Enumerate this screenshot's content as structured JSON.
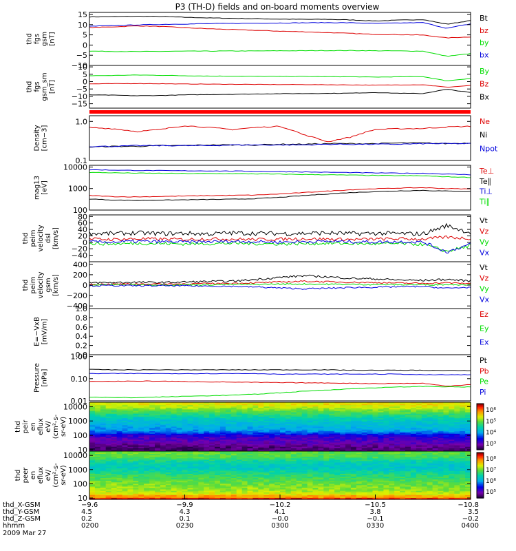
{
  "title": "P3 (TH-D) fields and on-board moments overview",
  "colors": {
    "black": "#000000",
    "red": "#dd0000",
    "green": "#00dd00",
    "blue": "#0000dd",
    "frame": "#000000",
    "flag": "#ff0000"
  },
  "chart_data": [
    {
      "type": "line",
      "panel": "fgs_gsm",
      "ylabel": [
        "thd",
        "fgs",
        "gsm",
        "[nT]"
      ],
      "yticks": [
        "15",
        "10",
        "5",
        "0",
        "−5",
        "−10"
      ],
      "ylim": [
        -10,
        16
      ],
      "series": [
        {
          "name": "Bt",
          "color": "black",
          "values": [
            13.8,
            13.9,
            14.1,
            14.0,
            13.6,
            13.3,
            13.1,
            12.9,
            12.7,
            12.6,
            12.6,
            12.3,
            11.8,
            12.2,
            12.5,
            10.2,
            12.0
          ]
        },
        {
          "name": "bz",
          "color": "red",
          "values": [
            8.6,
            8.9,
            9.4,
            9.1,
            8.5,
            8.0,
            7.6,
            7.2,
            6.8,
            6.5,
            6.1,
            5.7,
            5.2,
            5.1,
            4.9,
            3.5,
            4.0
          ]
        },
        {
          "name": "by",
          "color": "green",
          "values": [
            -3.0,
            -3.1,
            -3.2,
            -3.1,
            -3.0,
            -3.0,
            -2.9,
            -2.9,
            -2.8,
            -2.8,
            -2.7,
            -2.7,
            -2.8,
            -2.9,
            -3.0,
            -5.5,
            -4.2
          ]
        },
        {
          "name": "bx",
          "color": "blue",
          "values": [
            9.2,
            9.5,
            9.9,
            10.1,
            10.3,
            10.5,
            10.6,
            10.7,
            10.8,
            10.9,
            11.0,
            10.9,
            10.6,
            10.8,
            11.0,
            8.2,
            10.4
          ]
        }
      ]
    },
    {
      "type": "line",
      "panel": "fgs_gsm_sm",
      "ylabel": [
        "thd",
        "fgs",
        "gsm_sm",
        "[nT]"
      ],
      "yticks": [
        "10",
        "5",
        "0",
        "−5",
        "−10",
        "−15"
      ],
      "ylim": [
        -18,
        11
      ],
      "series": [
        {
          "name": "By",
          "color": "green",
          "values": [
            4.0,
            4.2,
            4.5,
            4.3,
            4.0,
            3.8,
            3.7,
            3.6,
            3.5,
            3.5,
            3.4,
            3.3,
            3.1,
            3.3,
            3.4,
            0.5,
            2.2
          ]
        },
        {
          "name": "Bz",
          "color": "red",
          "values": [
            -1.5,
            -1.4,
            -1.3,
            -1.4,
            -1.6,
            -1.7,
            -1.8,
            -1.9,
            -2.0,
            -2.0,
            -2.1,
            -2.2,
            -2.4,
            -2.2,
            -2.1,
            -3.8,
            -2.6
          ]
        },
        {
          "name": "Bx",
          "color": "black",
          "values": [
            -9.0,
            -9.2,
            -9.6,
            -9.4,
            -9.0,
            -8.8,
            -8.6,
            -8.4,
            -8.2,
            -8.1,
            -8.0,
            -7.8,
            -7.4,
            -7.9,
            -8.1,
            -5.2,
            -7.4
          ]
        }
      ]
    },
    {
      "type": "line",
      "panel": "density",
      "ylabel": [
        "Density",
        "[cm−3]"
      ],
      "yticks": [
        "1.0",
        "0.1"
      ],
      "yscale": "log",
      "ylim": [
        0.1,
        1.4
      ],
      "series": [
        {
          "name": "Ne",
          "color": "red",
          "values": [
            0.7,
            0.65,
            0.55,
            0.62,
            0.78,
            0.7,
            0.62,
            0.7,
            0.75,
            0.45,
            0.3,
            0.4,
            0.62,
            0.65,
            0.66,
            0.72,
            0.75
          ]
        },
        {
          "name": "Ni",
          "color": "black",
          "values": [
            0.22,
            0.23,
            0.23,
            0.24,
            0.24,
            0.25,
            0.25,
            0.25,
            0.26,
            0.26,
            0.27,
            0.27,
            0.27,
            0.28,
            0.28,
            0.27,
            0.28
          ]
        },
        {
          "name": "Npot",
          "color": "blue",
          "values": [
            0.23,
            0.23,
            0.24,
            0.24,
            0.24,
            0.24,
            0.25,
            0.25,
            0.25,
            0.25,
            0.26,
            0.26,
            0.26,
            0.26,
            0.27,
            0.27,
            0.27
          ]
        }
      ]
    },
    {
      "type": "line",
      "panel": "temperature",
      "ylabel": [
        "mag13",
        "[eV]"
      ],
      "yticks": [
        "10000",
        "1000",
        "100"
      ],
      "yscale": "log",
      "ylim": [
        100,
        12000
      ],
      "series": [
        {
          "name": "Te⊥",
          "color": "red",
          "values": [
            480,
            420,
            410,
            430,
            450,
            470,
            480,
            500,
            560,
            650,
            760,
            880,
            980,
            1050,
            1100,
            1000,
            950
          ]
        },
        {
          "name": "Te∥",
          "color": "black",
          "values": [
            330,
            290,
            280,
            290,
            300,
            310,
            320,
            340,
            390,
            470,
            560,
            650,
            720,
            780,
            820,
            760,
            720
          ]
        },
        {
          "name": "Ti⊥",
          "color": "blue",
          "values": [
            7500,
            7200,
            6900,
            6800,
            6700,
            6600,
            6500,
            6300,
            6100,
            5900,
            5700,
            5500,
            5300,
            5200,
            5100,
            4700,
            4400
          ]
        },
        {
          "name": "Ti∥",
          "color": "green",
          "values": [
            5600,
            5400,
            5200,
            5100,
            5000,
            4950,
            4900,
            4800,
            4650,
            4500,
            4350,
            4200,
            4050,
            3950,
            3900,
            3500,
            3300
          ]
        }
      ]
    },
    {
      "type": "line",
      "panel": "peim_velocity_dsl",
      "ylabel": [
        "thd",
        "peim",
        "velocity",
        "dsl",
        "[km/s]"
      ],
      "yticks": [
        "80",
        "60",
        "40",
        "20",
        "0",
        "−20",
        "−40"
      ],
      "ylim": [
        -60,
        85
      ],
      "series": [
        {
          "name": "Vt",
          "color": "black",
          "values": [
            28,
            27,
            29,
            27,
            28,
            26,
            29,
            28,
            27,
            28,
            29,
            27,
            28,
            27,
            26,
            52,
            30
          ]
        },
        {
          "name": "Vz",
          "color": "red",
          "values": [
            10,
            9,
            11,
            10,
            9,
            11,
            10,
            9,
            10,
            11,
            10,
            9,
            10,
            11,
            10,
            16,
            12
          ]
        },
        {
          "name": "Vy",
          "color": "green",
          "values": [
            -4,
            -5,
            -3,
            -4,
            -5,
            -4,
            -3,
            -4,
            -5,
            -4,
            -3,
            -4,
            -5,
            -4,
            -6,
            -28,
            -10
          ]
        },
        {
          "name": "Vx",
          "color": "blue",
          "values": [
            2,
            1,
            3,
            2,
            1,
            2,
            3,
            2,
            1,
            2,
            3,
            2,
            1,
            2,
            1,
            -30,
            -5
          ]
        }
      ]
    },
    {
      "type": "line",
      "panel": "peim_velocity_gsm",
      "ylabel": [
        "thd",
        "peim",
        "velocity",
        "gsm",
        "[km/s]"
      ],
      "yticks": [
        "400",
        "200",
        "0",
        "−200",
        "−400"
      ],
      "ylim": [
        -450,
        450
      ],
      "series": [
        {
          "name": "Vt",
          "color": "black",
          "values": [
            45,
            50,
            55,
            50,
            60,
            70,
            75,
            110,
            150,
            180,
            160,
            130,
            120,
            100,
            90,
            110,
            80
          ]
        },
        {
          "name": "Vz",
          "color": "red",
          "values": [
            15,
            20,
            25,
            20,
            25,
            30,
            35,
            45,
            60,
            75,
            65,
            55,
            50,
            40,
            35,
            45,
            30
          ]
        },
        {
          "name": "Vy",
          "color": "green",
          "values": [
            5,
            6,
            8,
            6,
            8,
            10,
            12,
            15,
            20,
            22,
            18,
            15,
            12,
            10,
            8,
            12,
            10
          ]
        },
        {
          "name": "Vx",
          "color": "blue",
          "values": [
            -10,
            -8,
            -12,
            -10,
            -14,
            -18,
            -22,
            -35,
            -55,
            -70,
            -60,
            -45,
            -40,
            -30,
            -25,
            -60,
            -40
          ]
        }
      ]
    },
    {
      "type": "line",
      "panel": "efield",
      "ylabel": [
        "E=−VxB",
        "[mV/m]"
      ],
      "yticks": [
        "1.0",
        "0.8",
        "0.6",
        "0.4",
        "0.2",
        "0.0"
      ],
      "ylim": [
        0,
        1
      ],
      "series": [
        {
          "name": "Ez",
          "color": "red",
          "values": []
        },
        {
          "name": "Ey",
          "color": "green",
          "values": []
        },
        {
          "name": "Ex",
          "color": "blue",
          "values": []
        }
      ]
    },
    {
      "type": "line",
      "panel": "pressure",
      "ylabel": [
        "Pressure",
        "[nPa]"
      ],
      "yticks": [
        "1.00",
        "0.10",
        "0.01"
      ],
      "yscale": "log",
      "ylim": [
        0.01,
        1.2
      ],
      "series": [
        {
          "name": "Pt",
          "color": "black",
          "values": [
            0.26,
            0.25,
            0.25,
            0.25,
            0.25,
            0.25,
            0.25,
            0.25,
            0.25,
            0.25,
            0.25,
            0.24,
            0.24,
            0.24,
            0.24,
            0.23,
            0.23
          ]
        },
        {
          "name": "Pb",
          "color": "red",
          "values": [
            0.075,
            0.076,
            0.078,
            0.077,
            0.074,
            0.072,
            0.07,
            0.068,
            0.066,
            0.065,
            0.064,
            0.062,
            0.06,
            0.061,
            0.062,
            0.045,
            0.055
          ]
        },
        {
          "name": "Pe",
          "color": "green",
          "values": [
            0.015,
            0.014,
            0.014,
            0.015,
            0.016,
            0.017,
            0.018,
            0.02,
            0.023,
            0.027,
            0.031,
            0.035,
            0.039,
            0.042,
            0.045,
            0.043,
            0.042
          ]
        },
        {
          "name": "Pi",
          "color": "blue",
          "values": [
            0.17,
            0.17,
            0.17,
            0.17,
            0.17,
            0.17,
            0.17,
            0.17,
            0.16,
            0.16,
            0.16,
            0.16,
            0.16,
            0.16,
            0.15,
            0.15,
            0.15
          ]
        }
      ]
    },
    {
      "type": "heatmap",
      "panel": "peir_en_eflux",
      "ylabel": [
        "thd",
        "peir",
        "en",
        "eflux",
        "eV/",
        "(cm²-s-",
        "sr-eV)"
      ],
      "yticks": [
        "10000",
        "1000",
        "100",
        "10"
      ],
      "yscale": "log",
      "ylim": [
        8,
        20000
      ],
      "colorbar": {
        "ticks": [
          "10⁶",
          "10⁵",
          "10⁴",
          "10³"
        ],
        "range_log10": [
          2.5,
          6.5
        ]
      },
      "energy_bands_log10": [
        {
          "center_log10": 4.15,
          "value_log10": 5.4
        },
        {
          "center_log10": 3.85,
          "value_log10": 5.1
        },
        {
          "center_log10": 3.5,
          "value_log10": 4.7
        },
        {
          "center_log10": 3.1,
          "value_log10": 4.3
        },
        {
          "center_log10": 2.7,
          "value_log10": 4.1
        },
        {
          "center_log10": 2.3,
          "value_log10": 3.9
        },
        {
          "center_log10": 1.9,
          "value_log10": 3.2
        },
        {
          "center_log10": 1.5,
          "value_log10": 3.0
        },
        {
          "center_log10": 1.1,
          "value_log10": 2.7
        }
      ]
    },
    {
      "type": "heatmap",
      "panel": "peer_en_eflux",
      "ylabel": [
        "thd",
        "peer",
        "en",
        "eflux",
        "eV/",
        "(cm²-s-",
        "sr-eV)"
      ],
      "yticks": [
        "10000",
        "1000",
        "100",
        "10"
      ],
      "yscale": "log",
      "ylim": [
        8,
        20000
      ],
      "colorbar": {
        "ticks": [
          "10⁸",
          "10⁷",
          "10⁶",
          "10⁵"
        ],
        "range_log10": [
          4.5,
          8.3
        ]
      },
      "energy_bands_log10": [
        {
          "center_log10": 4.2,
          "value_log10": 6.9
        },
        {
          "center_log10": 3.85,
          "value_log10": 6.8
        },
        {
          "center_log10": 3.5,
          "value_log10": 6.4
        },
        {
          "center_log10": 3.1,
          "value_log10": 6.3
        },
        {
          "center_log10": 2.7,
          "value_log10": 6.6
        },
        {
          "center_log10": 2.3,
          "value_log10": 6.8
        },
        {
          "center_log10": 1.9,
          "value_log10": 7.0
        },
        {
          "center_log10": 1.5,
          "value_log10": 7.1
        },
        {
          "center_log10": 1.1,
          "value_log10": 7.5
        },
        {
          "center_log10": 0.95,
          "value_log10": 8.1
        }
      ]
    }
  ],
  "xaxis": {
    "rows": [
      {
        "label": "thd_X-GSM",
        "values": [
          "−9.6",
          "−9.9",
          "−10.2",
          "−10.5",
          "−10.8"
        ]
      },
      {
        "label": "thd_Y-GSM",
        "values": [
          "4.5",
          "4.3",
          "4.1",
          "3.8",
          "3.5"
        ]
      },
      {
        "label": "thd_Z-GSM",
        "values": [
          "0.2",
          "0.1",
          "−0.0",
          "−0.1",
          "−0.2"
        ]
      },
      {
        "label": "hhmm",
        "values": [
          "0200",
          "0230",
          "0300",
          "0330",
          "0400"
        ]
      }
    ],
    "date": "2009 Mar 27"
  }
}
